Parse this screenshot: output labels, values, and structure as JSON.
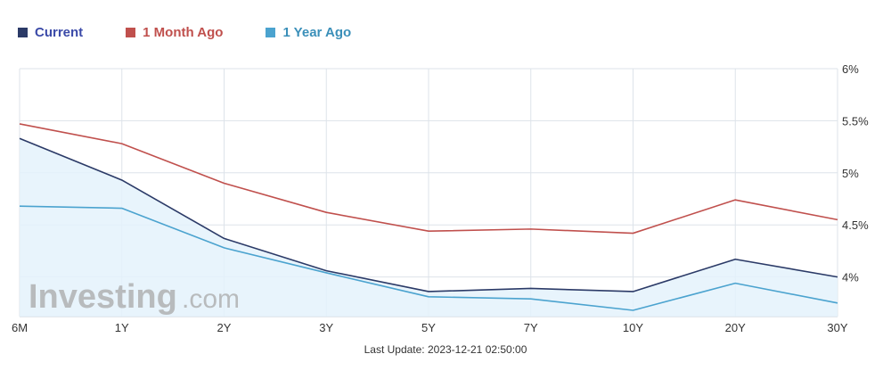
{
  "legend": [
    {
      "name": "Current",
      "color": "#2b3a67",
      "text_color": "#3b4aa8"
    },
    {
      "name": "1 Month Ago",
      "color": "#c0504d",
      "text_color": "#c0504d"
    },
    {
      "name": "1 Year Ago",
      "color": "#4ba3cf",
      "text_color": "#3a8fb9"
    }
  ],
  "footer": {
    "last_update": "Last Update: 2023-12-21 02:50:00"
  },
  "watermark": {
    "main": "Investing",
    "suffix": ".com"
  },
  "chart_data": {
    "type": "line",
    "categories": [
      "6M",
      "1Y",
      "2Y",
      "3Y",
      "5Y",
      "7Y",
      "10Y",
      "20Y",
      "30Y"
    ],
    "series": [
      {
        "name": "Current",
        "color": "#2b3a67",
        "values": [
          5.33,
          4.93,
          4.37,
          4.06,
          3.86,
          3.89,
          3.86,
          4.17,
          4.0
        ]
      },
      {
        "name": "1 Month Ago",
        "color": "#c0504d",
        "values": [
          5.47,
          5.28,
          4.9,
          4.62,
          4.44,
          4.46,
          4.42,
          4.74,
          4.55
        ]
      },
      {
        "name": "1 Year Ago",
        "color": "#4ba3cf",
        "values": [
          4.68,
          4.66,
          4.28,
          4.04,
          3.81,
          3.79,
          3.68,
          3.94,
          3.75
        ]
      }
    ],
    "ylim": [
      3.62,
      6
    ],
    "yticks": [
      4,
      4.5,
      5,
      5.5,
      6
    ],
    "ytick_labels": [
      "4%",
      "4.5%",
      "5%",
      "5.5%",
      "6%"
    ],
    "grid": true,
    "legend_position": "top-left"
  }
}
